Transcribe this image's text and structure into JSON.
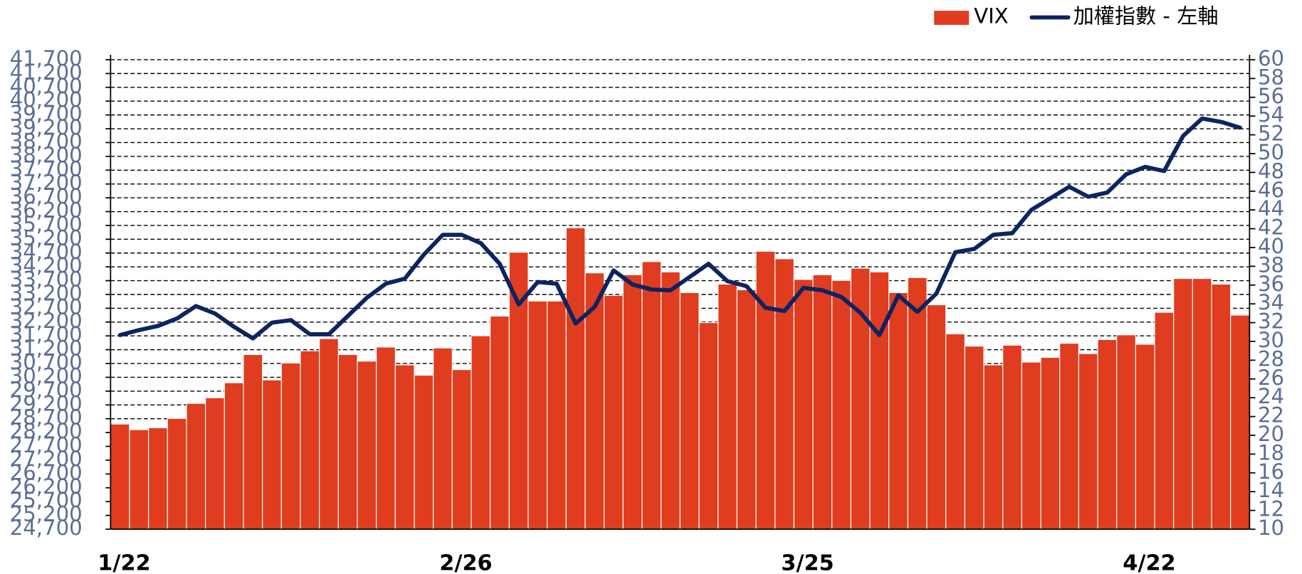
{
  "chart_data": {
    "type": "bar",
    "categories": [
      "1/22",
      null,
      null,
      null,
      null,
      null,
      null,
      null,
      null,
      null,
      null,
      null,
      null,
      null,
      null,
      null,
      null,
      null,
      "2/26",
      null,
      null,
      null,
      null,
      null,
      null,
      null,
      null,
      null,
      null,
      null,
      null,
      null,
      null,
      null,
      null,
      null,
      "3/25",
      null,
      null,
      null,
      null,
      null,
      null,
      null,
      null,
      null,
      null,
      null,
      null,
      null,
      null,
      null,
      null,
      null,
      "4/22",
      null,
      null,
      null,
      null,
      null
    ],
    "series": [
      {
        "name": "VIX",
        "color": "#e03c1f",
        "axis": "y2",
        "values": [
          21.2,
          20.6,
          20.8,
          21.8,
          23.4,
          24.0,
          25.6,
          28.6,
          25.9,
          27.7,
          29.0,
          30.3,
          28.6,
          27.9,
          29.4,
          27.5,
          26.4,
          29.3,
          27.0,
          30.6,
          32.7,
          39.5,
          34.3,
          34.3,
          42.1,
          37.3,
          34.9,
          37.1,
          38.5,
          37.4,
          35.2,
          32.0,
          36.1,
          35.5,
          39.6,
          38.8,
          36.6,
          37.1,
          36.5,
          37.8,
          37.4,
          35.2,
          36.8,
          33.9,
          30.8,
          29.5,
          27.5,
          29.6,
          27.8,
          28.3,
          29.8,
          28.7,
          30.2,
          30.7,
          29.7,
          33.1,
          36.7,
          36.7,
          36.1,
          32.8
        ]
      },
      {
        "name": "加權指數 - 左軸",
        "color": "#0c2461",
        "type": "line",
        "axis": "y",
        "values": [
          31730,
          31910,
          32060,
          32330,
          32780,
          32510,
          32030,
          31610,
          32180,
          32270,
          31760,
          31760,
          32420,
          33080,
          33590,
          33770,
          34640,
          35360,
          35360,
          35060,
          34310,
          32840,
          33650,
          33590,
          32150,
          32750,
          34070,
          33560,
          33380,
          33350,
          33830,
          34310,
          33680,
          33500,
          32720,
          32600,
          33440,
          33350,
          33110,
          32540,
          31730,
          33170,
          32570,
          33230,
          34730,
          34850,
          35360,
          35420,
          36260,
          36680,
          37100,
          36740,
          36890,
          37550,
          37820,
          37670,
          38940,
          39570,
          39450,
          39240
        ]
      }
    ],
    "ylim": [
      24700,
      41700
    ],
    "yticks": [
      {
        "value": 24700,
        "label": "24,700"
      },
      {
        "value": 25200,
        "label": "25,200"
      },
      {
        "value": 25700,
        "label": "25,700"
      },
      {
        "value": 26200,
        "label": "26,200"
      },
      {
        "value": 26700,
        "label": "26,700"
      },
      {
        "value": 27200,
        "label": "27,200"
      },
      {
        "value": 27700,
        "label": "27,700"
      },
      {
        "value": 28200,
        "label": "28,200"
      },
      {
        "value": 28700,
        "label": "28,700"
      },
      {
        "value": 29200,
        "label": "29,200"
      },
      {
        "value": 29700,
        "label": "29,700"
      },
      {
        "value": 30200,
        "label": "30,200"
      },
      {
        "value": 30700,
        "label": "30,700"
      },
      {
        "value": 31200,
        "label": "31,200"
      },
      {
        "value": 31700,
        "label": "31,700"
      },
      {
        "value": 32200,
        "label": "32,200"
      },
      {
        "value": 32700,
        "label": "32,700"
      },
      {
        "value": 33200,
        "label": "33,200"
      },
      {
        "value": 33700,
        "label": "33,700"
      },
      {
        "value": 34200,
        "label": "34,200"
      },
      {
        "value": 34700,
        "label": "34,700"
      },
      {
        "value": 35200,
        "label": "35,200"
      },
      {
        "value": 35700,
        "label": "35,700"
      },
      {
        "value": 36200,
        "label": "36,200"
      },
      {
        "value": 36700,
        "label": "36,700"
      },
      {
        "value": 37200,
        "label": "37,200"
      },
      {
        "value": 37700,
        "label": "37,700"
      },
      {
        "value": 38200,
        "label": "38,200"
      },
      {
        "value": 38700,
        "label": "38,700"
      },
      {
        "value": 39200,
        "label": "39,200"
      },
      {
        "value": 39700,
        "label": "39,700"
      },
      {
        "value": 40200,
        "label": "40,200"
      },
      {
        "value": 40700,
        "label": "40,700"
      },
      {
        "value": 41200,
        "label": "41,200"
      },
      {
        "value": 41700,
        "label": "41,700"
      }
    ],
    "y2lim": [
      10,
      60
    ],
    "y2ticks": [
      10,
      12,
      14,
      16,
      18,
      20,
      22,
      24,
      26,
      28,
      30,
      32,
      34,
      36,
      38,
      40,
      42,
      44,
      46,
      48,
      50,
      52,
      54,
      56,
      58,
      60
    ],
    "grid": true,
    "legend": "top-right"
  }
}
